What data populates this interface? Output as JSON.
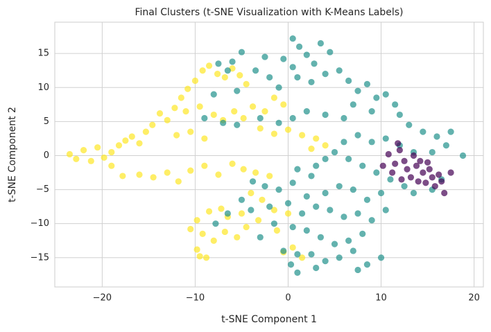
{
  "chart_data": {
    "type": "scatter",
    "title": "Final Clusters (t-SNE Visualization with K-Means Labels)",
    "x_label": "t-SNE Component 1",
    "y_label": "t-SNE Component 2",
    "xlim": [
      -25.1,
      21
    ],
    "ylim": [
      -19.3,
      19.6
    ],
    "xticks": [
      {
        "value": -20,
        "label": "−20"
      },
      {
        "value": -10,
        "label": "−10"
      },
      0,
      10,
      20
    ],
    "yticks": [
      {
        "value": -15,
        "label": "−15"
      },
      {
        "value": -10,
        "label": "−10"
      },
      {
        "value": -5,
        "label": "−5"
      },
      0,
      5,
      10,
      15
    ],
    "grid": true,
    "series": [
      {
        "color": "#fde725",
        "x": [
          -23.5,
          -22.8,
          -22,
          -21.2,
          -20.5,
          -19.8,
          -19,
          -18.2,
          -17.5,
          -16.8,
          -16,
          -15.3,
          -14.6,
          -13.8,
          -13,
          -12.2,
          -11.5,
          -10.8,
          -10,
          -9.2,
          -8.5,
          -7.6,
          -6.8,
          -6,
          -5.2,
          -4.5,
          -11,
          -9.5,
          -8,
          -7,
          -5.8,
          -4.8,
          -3.8,
          -2.5,
          -1.5,
          -0.5,
          -3,
          -1.5,
          0,
          1.5,
          3,
          4,
          2.5,
          -12,
          -10.5,
          -9,
          -16,
          -14.5,
          -13,
          -11.8,
          -10.5,
          -9,
          -7.5,
          -6,
          -4.8,
          -3.5,
          -2,
          -19,
          -17.8,
          -4,
          -2.8,
          -1.5,
          -3.2,
          -5,
          -6.5,
          -7.2,
          -8.5,
          -9.8,
          -10.5,
          -9.2,
          -8,
          -6.8,
          -5.5,
          -4.5,
          -9.5,
          -8.8,
          -9.8,
          -0.5,
          0.5,
          1.5,
          -1.2,
          0
        ],
        "y": [
          0.2,
          -0.5,
          0.8,
          -0.8,
          1.2,
          -0.3,
          0.5,
          1.5,
          2.2,
          2.8,
          1.8,
          3.5,
          4.5,
          6.2,
          5.2,
          7,
          8.5,
          9.8,
          11,
          12.5,
          13.2,
          12,
          11.5,
          12.8,
          11.8,
          10.5,
          6.5,
          7.2,
          6,
          5.2,
          6.5,
          5.5,
          7.2,
          6.5,
          8.5,
          7.5,
          4,
          3.2,
          3.8,
          3,
          2.5,
          1.5,
          1,
          3,
          3.5,
          2.5,
          -2.8,
          -3.2,
          -2.5,
          -3.8,
          -2.2,
          -1.5,
          -2.8,
          -1.2,
          -2,
          -2.5,
          -3,
          -1.5,
          -3,
          -5.5,
          -6.5,
          -8,
          -9.5,
          -8.5,
          -9,
          -7.8,
          -8.2,
          -9.5,
          -10.8,
          -11.5,
          -12.5,
          -11.2,
          -12,
          -10.5,
          -14.8,
          -15,
          -13.8,
          -14.2,
          -13.5,
          -15,
          -11,
          -8.5
        ]
      },
      {
        "color": "#21918c",
        "x": [
          0.5,
          1.2,
          2,
          3.5,
          4.5,
          2.8,
          0.5,
          -0.5,
          -2.5,
          -3.5,
          -5,
          -6,
          -6.5,
          -7.5,
          -2,
          -1,
          1,
          2.5,
          4,
          5.5,
          6.5,
          7.5,
          8.5,
          9.5,
          10.5,
          11.5,
          12,
          9,
          7,
          6,
          4,
          2,
          0.5,
          -1,
          -3,
          -5.5,
          -7,
          -9,
          -5.5,
          -8,
          13,
          14.5,
          16,
          17.5,
          18.8,
          17,
          15.5,
          13.5,
          12,
          10.5,
          9,
          7.5,
          6,
          5,
          4,
          3,
          2.5,
          1,
          6.5,
          8,
          9.5,
          11,
          12.5,
          13.5,
          15.5,
          16.5,
          10,
          8.5,
          7,
          5.5,
          4,
          2,
          0.5,
          -1,
          -2.5,
          -3.8,
          -5,
          -6.5,
          -7.8,
          -4,
          -2,
          0,
          1.5,
          3,
          4.5,
          6,
          7.5,
          9,
          10.5,
          8,
          6.5,
          5,
          3.5,
          2,
          0.5,
          -1.5,
          -3,
          1,
          2.5,
          4,
          3,
          5.5,
          7,
          8.5,
          10,
          1,
          0.3,
          -0.5,
          7.5
        ],
        "y": [
          17.2,
          16,
          14.8,
          16.5,
          15.2,
          13.5,
          13,
          14.2,
          14.5,
          12.5,
          15.2,
          13.8,
          12.5,
          13.5,
          11.5,
          10,
          11.5,
          10.8,
          12,
          12.5,
          11,
          9.5,
          10.5,
          8.5,
          9,
          7.5,
          6,
          6.5,
          7.5,
          5.5,
          6,
          6.5,
          5.5,
          4.8,
          5.5,
          4.5,
          4.8,
          5.5,
          9.5,
          9,
          4.5,
          3.5,
          2.8,
          3.5,
          0,
          1.5,
          0.5,
          0.5,
          1.5,
          2.5,
          2,
          3,
          2,
          0.5,
          -0.5,
          -1.5,
          -3,
          -2,
          -0.5,
          -1.5,
          -2.5,
          -3.5,
          -4.5,
          -5.5,
          -5,
          -3.5,
          -5.5,
          -6.5,
          -5,
          -4.5,
          -5.5,
          -6,
          -4,
          -5,
          -4.5,
          -3.8,
          -6.5,
          -8.5,
          -10,
          -8,
          -7.5,
          -7,
          -8.5,
          -7.5,
          -8,
          -9,
          -8.5,
          -9.5,
          -8,
          -11.5,
          -12.5,
          -13,
          -12,
          -11,
          -10.5,
          -10,
          -12,
          -14.5,
          -14.5,
          -15.5,
          -16.5,
          -15,
          -14,
          -16,
          -15,
          -17.2,
          -16,
          -14,
          -16.8
        ]
      },
      {
        "color": "#440154",
        "x": [
          10.2,
          10.8,
          11.5,
          11.2,
          12,
          12.5,
          12.8,
          13.2,
          13.8,
          14,
          14.5,
          14.8,
          15.2,
          15.5,
          15.8,
          16.2,
          16.5,
          17.5,
          13.5,
          14.2,
          15,
          16.8,
          11.8,
          12.2
        ],
        "y": [
          -1.5,
          0.2,
          -1.2,
          -2.5,
          0.8,
          -0.8,
          -2,
          -3.2,
          -1.5,
          -3.8,
          -2.5,
          -4,
          -2,
          -3.2,
          -4.5,
          -2.8,
          -3.8,
          -2.5,
          0,
          -0.8,
          -1,
          -5.5,
          1.8,
          -3.5
        ]
      }
    ]
  }
}
